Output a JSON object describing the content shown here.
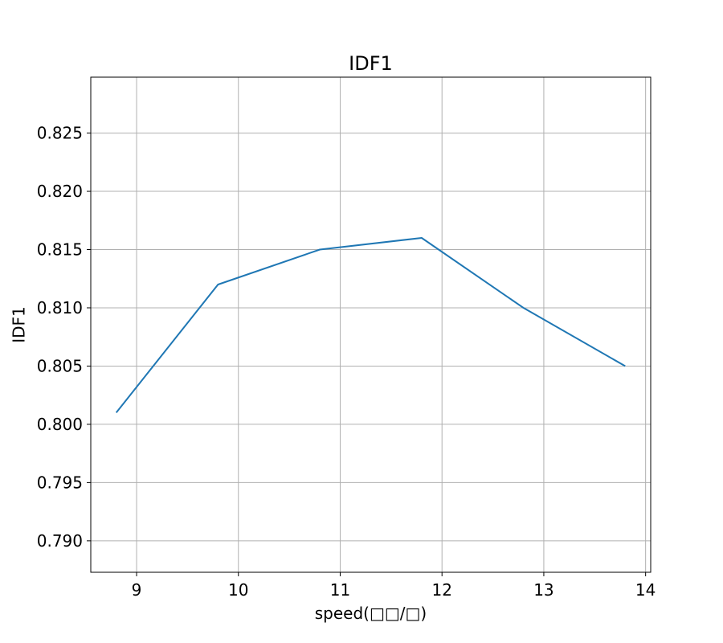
{
  "chart_data": {
    "type": "line",
    "title": "IDF1",
    "xlabel": "speed(□□/□)",
    "ylabel": "IDF1",
    "xlim": [
      8.55,
      14.05
    ],
    "ylim": [
      0.7873,
      0.8298
    ],
    "xticks": [
      9,
      10,
      11,
      12,
      13,
      14
    ],
    "yticks": [
      0.79,
      0.795,
      0.8,
      0.805,
      0.81,
      0.815,
      0.82,
      0.825
    ],
    "ytick_labels": [
      "0.790",
      "0.795",
      "0.800",
      "0.805",
      "0.810",
      "0.815",
      "0.820",
      "0.825"
    ],
    "grid": true,
    "series": [
      {
        "x": [
          8.8,
          9.8,
          10.8,
          11.8,
          12.8,
          13.8
        ],
        "y": [
          0.801,
          0.812,
          0.815,
          0.816,
          0.81,
          0.805
        ],
        "color": "#1f77b4"
      }
    ]
  }
}
